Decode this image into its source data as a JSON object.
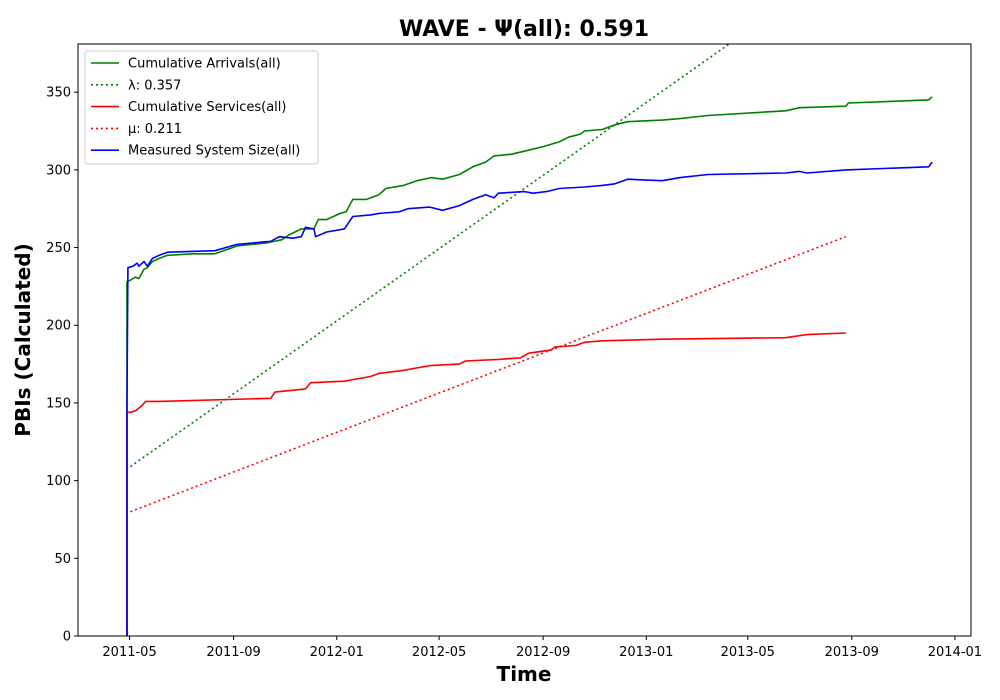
{
  "chart_data": {
    "type": "line",
    "title": "WAVE -  Ψ(all): 0.591",
    "xlabel": "Time",
    "ylabel": "PBIs (Calculated)",
    "xlim": [
      "2011-03-01",
      "2014-01-20"
    ],
    "ylim": [
      0,
      381
    ],
    "x_ticks": [
      "2011-05",
      "2011-09",
      "2012-01",
      "2012-05",
      "2012-09",
      "2013-01",
      "2013-05",
      "2013-09",
      "2014-01"
    ],
    "y_ticks": [
      0,
      50,
      100,
      150,
      200,
      250,
      300,
      350
    ],
    "grid": false,
    "legend_position": "top-left",
    "series": [
      {
        "name": "Cumulative Arrivals(all)",
        "color": "#008000",
        "style": "solid",
        "points": [
          [
            "2011-04-28",
            0
          ],
          [
            "2011-04-28",
            228
          ],
          [
            "2011-05-02",
            229
          ],
          [
            "2011-05-08",
            231
          ],
          [
            "2011-05-12",
            230
          ],
          [
            "2011-05-18",
            236
          ],
          [
            "2011-05-22",
            237
          ],
          [
            "2011-05-28",
            241
          ],
          [
            "2011-06-05",
            243
          ],
          [
            "2011-06-15",
            245
          ],
          [
            "2011-07-15",
            246
          ],
          [
            "2011-08-10",
            246
          ],
          [
            "2011-08-20",
            248
          ],
          [
            "2011-09-05",
            251
          ],
          [
            "2011-10-10",
            253
          ],
          [
            "2011-10-28",
            255
          ],
          [
            "2011-11-05",
            258
          ],
          [
            "2011-11-20",
            262
          ],
          [
            "2011-12-05",
            262
          ],
          [
            "2011-12-10",
            268
          ],
          [
            "2011-12-20",
            268
          ],
          [
            "2012-01-05",
            272
          ],
          [
            "2012-01-12",
            273
          ],
          [
            "2012-01-20",
            281
          ],
          [
            "2012-02-05",
            281
          ],
          [
            "2012-02-20",
            284
          ],
          [
            "2012-02-28",
            288
          ],
          [
            "2012-03-20",
            290
          ],
          [
            "2012-04-05",
            293
          ],
          [
            "2012-04-22",
            295
          ],
          [
            "2012-05-05",
            294
          ],
          [
            "2012-05-25",
            297
          ],
          [
            "2012-06-10",
            302
          ],
          [
            "2012-06-25",
            305
          ],
          [
            "2012-07-05",
            309
          ],
          [
            "2012-07-25",
            310
          ],
          [
            "2012-08-10",
            312
          ],
          [
            "2012-09-01",
            315
          ],
          [
            "2012-09-20",
            318
          ],
          [
            "2012-10-01",
            321
          ],
          [
            "2012-10-15",
            323
          ],
          [
            "2012-10-20",
            325
          ],
          [
            "2012-11-10",
            326
          ],
          [
            "2012-11-25",
            329
          ],
          [
            "2012-12-10",
            331
          ],
          [
            "2013-01-20",
            332
          ],
          [
            "2013-02-10",
            333
          ],
          [
            "2013-03-15",
            335
          ],
          [
            "2013-06-15",
            338
          ],
          [
            "2013-07-01",
            340
          ],
          [
            "2013-08-25",
            341
          ],
          [
            "2013-08-28",
            343
          ],
          [
            "2013-12-01",
            345
          ],
          [
            "2013-12-05",
            347
          ]
        ]
      },
      {
        "name": "λ: 0.357",
        "color": "#008000",
        "style": "dotted",
        "points": [
          [
            "2011-05-02",
            109
          ],
          [
            "2013-04-09",
            381
          ]
        ]
      },
      {
        "name": "Cumulative Services(all)",
        "color": "#ff0000",
        "style": "solid",
        "points": [
          [
            "2011-04-28",
            0
          ],
          [
            "2011-04-28",
            144
          ],
          [
            "2011-05-02",
            144
          ],
          [
            "2011-05-08",
            145
          ],
          [
            "2011-05-15",
            148
          ],
          [
            "2011-05-20",
            151
          ],
          [
            "2011-06-05",
            151
          ],
          [
            "2011-10-15",
            153
          ],
          [
            "2011-10-20",
            157
          ],
          [
            "2011-11-25",
            159
          ],
          [
            "2011-12-01",
            163
          ],
          [
            "2012-01-10",
            164
          ],
          [
            "2012-01-20",
            165
          ],
          [
            "2012-02-10",
            167
          ],
          [
            "2012-02-20",
            169
          ],
          [
            "2012-03-20",
            171
          ],
          [
            "2012-04-20",
            174
          ],
          [
            "2012-05-25",
            175
          ],
          [
            "2012-06-01",
            177
          ],
          [
            "2012-07-10",
            178
          ],
          [
            "2012-08-05",
            179
          ],
          [
            "2012-08-15",
            182
          ],
          [
            "2012-09-10",
            184
          ],
          [
            "2012-09-15",
            186
          ],
          [
            "2012-10-10",
            187
          ],
          [
            "2012-10-20",
            189
          ],
          [
            "2012-11-10",
            190
          ],
          [
            "2013-01-20",
            191
          ],
          [
            "2013-06-15",
            192
          ],
          [
            "2013-07-10",
            194
          ],
          [
            "2013-08-25",
            195
          ]
        ]
      },
      {
        "name": "μ: 0.211",
        "color": "#ff0000",
        "style": "dotted",
        "points": [
          [
            "2011-05-02",
            80
          ],
          [
            "2013-08-25",
            257
          ]
        ]
      },
      {
        "name": "Measured System Size(all)",
        "color": "#0000ff",
        "style": "solid",
        "points": [
          [
            "2011-04-28",
            0
          ],
          [
            "2011-04-28",
            152
          ],
          [
            "2011-04-29",
            237
          ],
          [
            "2011-05-05",
            238
          ],
          [
            "2011-05-10",
            240
          ],
          [
            "2011-05-12",
            238
          ],
          [
            "2011-05-18",
            241
          ],
          [
            "2011-05-22",
            238
          ],
          [
            "2011-05-28",
            243
          ],
          [
            "2011-06-05",
            245
          ],
          [
            "2011-06-15",
            247
          ],
          [
            "2011-08-10",
            248
          ],
          [
            "2011-09-05",
            252
          ],
          [
            "2011-10-15",
            254
          ],
          [
            "2011-10-25",
            257
          ],
          [
            "2011-11-10",
            256
          ],
          [
            "2011-11-20",
            257
          ],
          [
            "2011-11-25",
            263
          ],
          [
            "2011-12-05",
            262
          ],
          [
            "2011-12-07",
            257
          ],
          [
            "2011-12-20",
            260
          ],
          [
            "2012-01-10",
            262
          ],
          [
            "2012-01-20",
            270
          ],
          [
            "2012-02-10",
            271
          ],
          [
            "2012-02-20",
            272
          ],
          [
            "2012-03-15",
            273
          ],
          [
            "2012-03-25",
            275
          ],
          [
            "2012-04-20",
            276
          ],
          [
            "2012-05-05",
            274
          ],
          [
            "2012-05-25",
            277
          ],
          [
            "2012-06-10",
            281
          ],
          [
            "2012-06-25",
            284
          ],
          [
            "2012-07-05",
            282
          ],
          [
            "2012-07-10",
            285
          ],
          [
            "2012-08-10",
            286
          ],
          [
            "2012-08-20",
            285
          ],
          [
            "2012-09-05",
            286
          ],
          [
            "2012-09-20",
            288
          ],
          [
            "2012-10-20",
            289
          ],
          [
            "2012-11-10",
            290
          ],
          [
            "2012-11-25",
            291
          ],
          [
            "2012-12-10",
            294
          ],
          [
            "2013-01-20",
            293
          ],
          [
            "2013-02-10",
            295
          ],
          [
            "2013-03-15",
            297
          ],
          [
            "2013-06-15",
            298
          ],
          [
            "2013-07-01",
            299
          ],
          [
            "2013-07-10",
            298
          ],
          [
            "2013-08-25",
            300
          ],
          [
            "2013-12-01",
            302
          ],
          [
            "2013-12-05",
            305
          ]
        ]
      }
    ]
  }
}
